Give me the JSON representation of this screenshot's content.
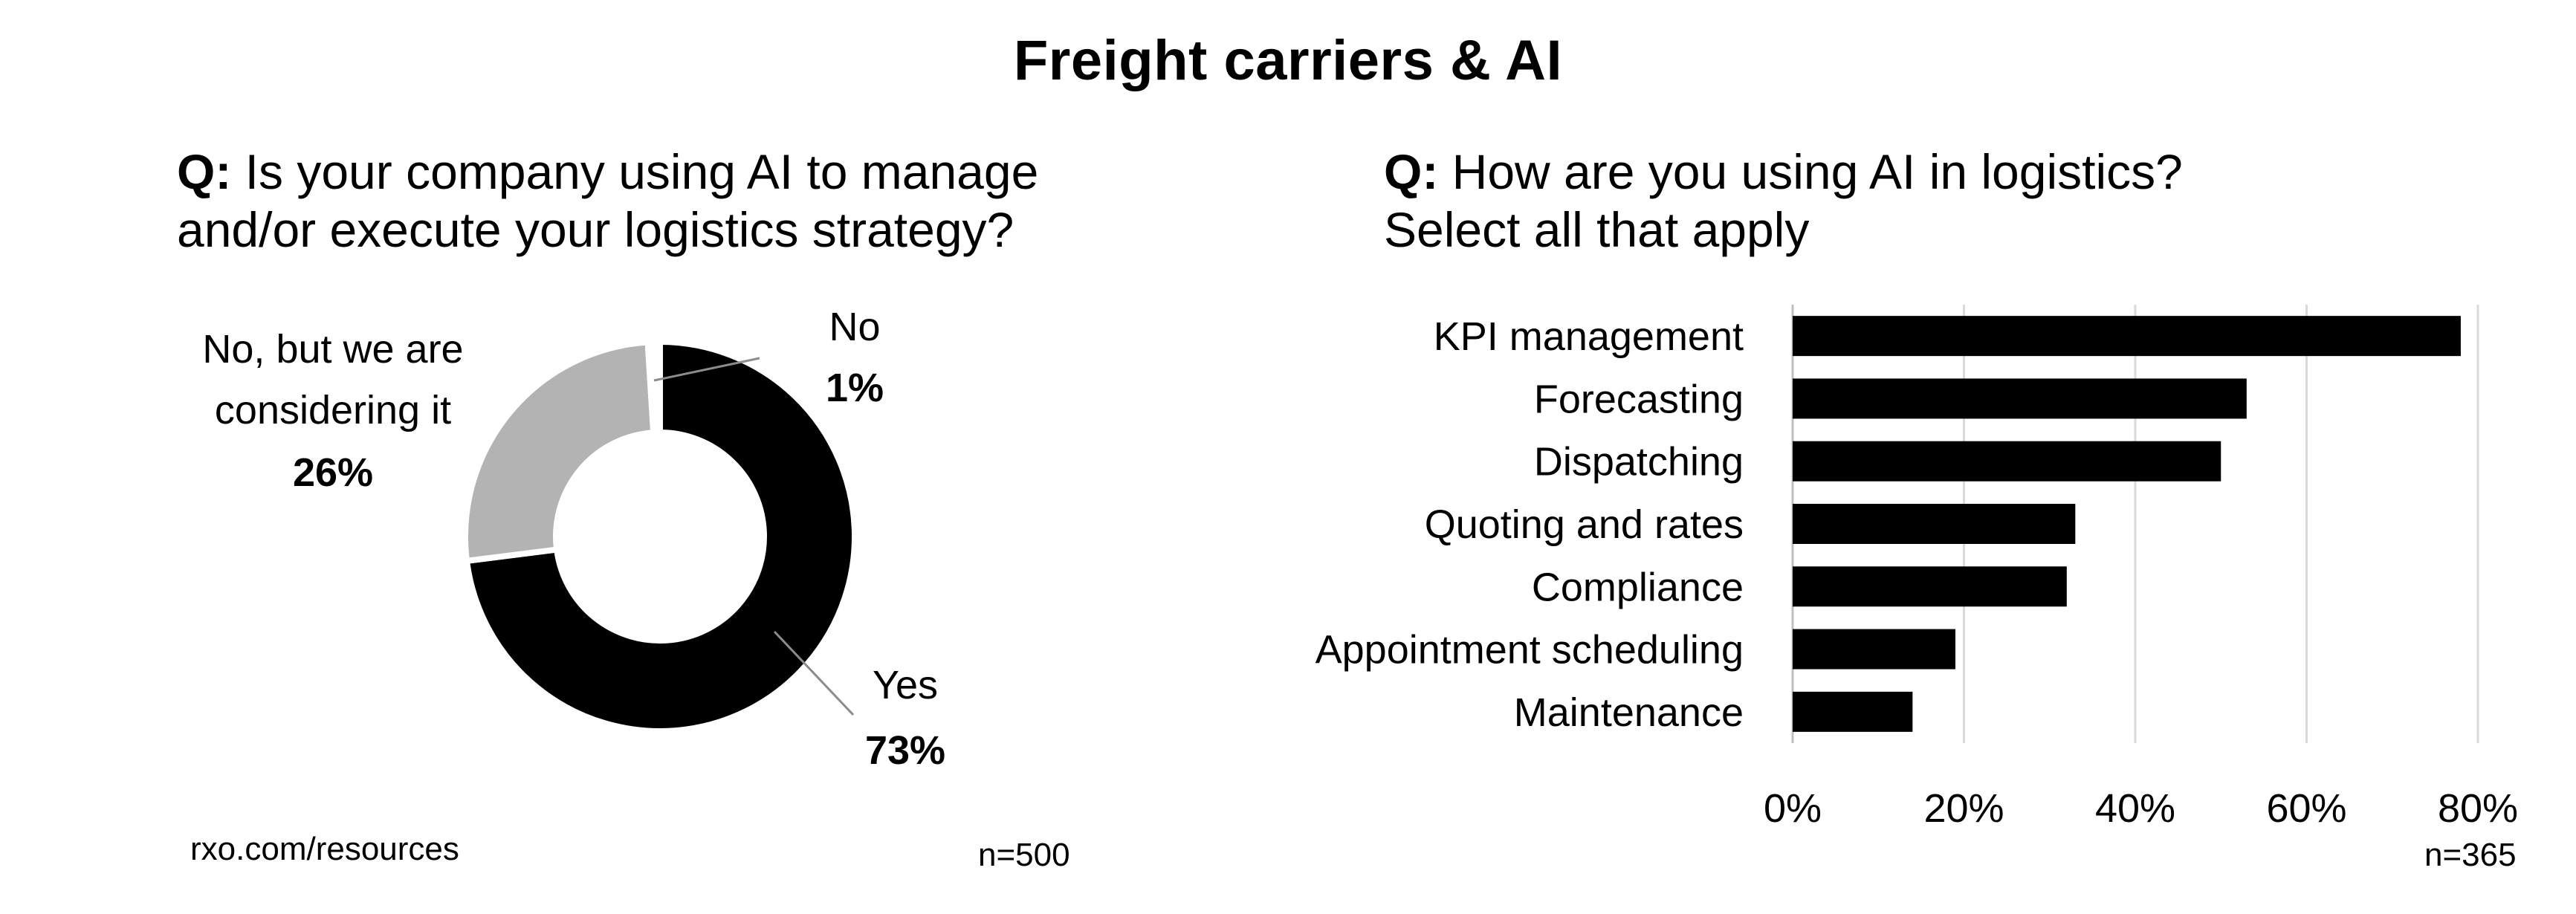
{
  "title": "Freight carriers & AI",
  "left": {
    "q_prefix": "Q:",
    "question_line1": "Is your company using AI to manage",
    "question_line2": "and/or execute your logistics strategy?",
    "n": "n=500"
  },
  "right": {
    "q_prefix": "Q:",
    "question_line1": "How are you using AI in logistics?",
    "question_line2": "Select all that apply",
    "n": "n=365"
  },
  "source": "rxo.com/resources",
  "colors": {
    "yes": "#000000",
    "considering": "#b3b3b3",
    "no": "#ffffff",
    "bar": "#000000",
    "grid": "#d9d9d9"
  },
  "chart_data": [
    {
      "type": "pie",
      "style": "donut",
      "slices": [
        {
          "label": "Yes",
          "value": 73,
          "value_label": "73%"
        },
        {
          "label_line1": "No, but we are",
          "label_line2": "considering it",
          "value": 26,
          "value_label": "26%"
        },
        {
          "label": "No",
          "value": 1,
          "value_label": "1%"
        }
      ]
    },
    {
      "type": "bar",
      "orientation": "horizontal",
      "categories": [
        "KPI management",
        "Forecasting",
        "Dispatching",
        "Quoting and rates",
        "Compliance",
        "Appointment scheduling",
        "Maintenance"
      ],
      "values": [
        78,
        53,
        50,
        33,
        32,
        19,
        14
      ],
      "xlim": [
        0,
        80
      ],
      "xticks": [
        "0%",
        "20%",
        "40%",
        "60%",
        "80%"
      ],
      "grid": true
    }
  ]
}
